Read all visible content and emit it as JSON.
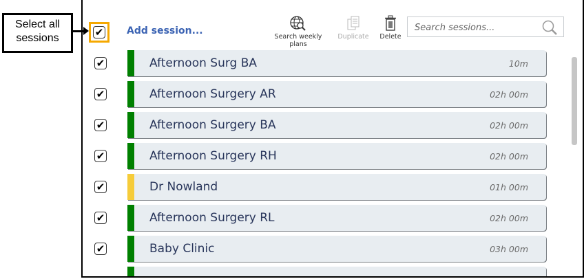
{
  "callout": {
    "text_line1": "Select all",
    "text_line2": "sessions"
  },
  "toolbar": {
    "select_all_checked": true,
    "add_session": "Add session...",
    "search_weekly_plans": "Search weekly plans",
    "duplicate": "Duplicate",
    "delete": "Delete",
    "search_placeholder": "Search sessions..."
  },
  "colors": {
    "green": "#008000",
    "yellow": "#f6cc3a",
    "accent": "#3b63b3",
    "highlight": "#f5a800"
  },
  "sessions": [
    {
      "name": "Afternoon Surg BA",
      "duration": "10m",
      "color": "green",
      "checked": true
    },
    {
      "name": "Afternoon Surgery AR",
      "duration": "02h 00m",
      "color": "green",
      "checked": true
    },
    {
      "name": "Afternoon Surgery BA",
      "duration": "02h 00m",
      "color": "green",
      "checked": true
    },
    {
      "name": "Afternoon Surgery RH",
      "duration": "02h 00m",
      "color": "green",
      "checked": true
    },
    {
      "name": "Dr Nowland",
      "duration": "01h 00m",
      "color": "yellow",
      "checked": true
    },
    {
      "name": "Afternoon Surgery RL",
      "duration": "02h 00m",
      "color": "green",
      "checked": true
    },
    {
      "name": "Baby Clinic",
      "duration": "03h 00m",
      "color": "green",
      "checked": true
    }
  ]
}
